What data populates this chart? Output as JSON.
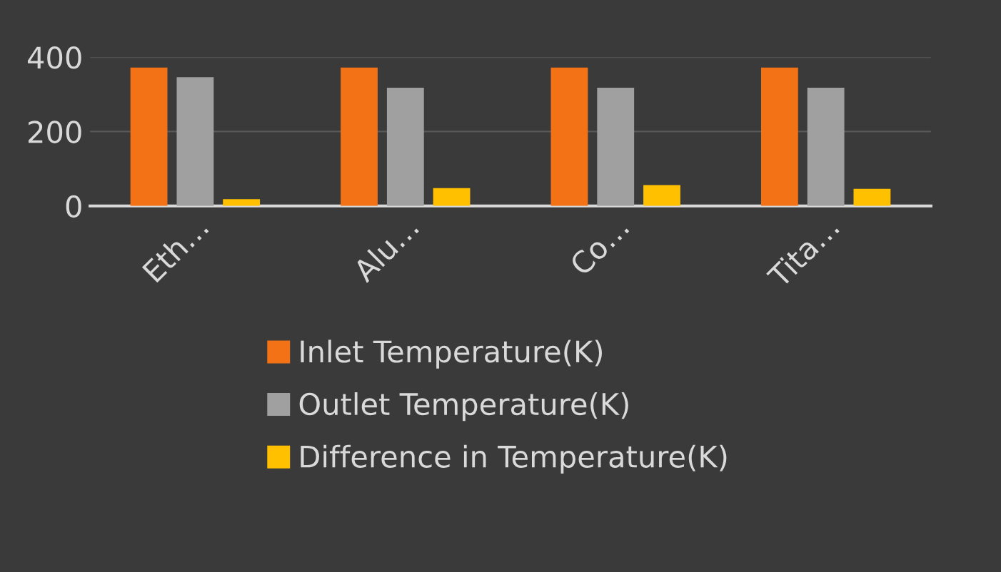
{
  "chart_data": {
    "type": "bar",
    "categories": [
      "Eth…",
      "Alu…",
      "Co…",
      "Tita…"
    ],
    "series": [
      {
        "name": "Inlet Temperature(K)",
        "color": "#f47216",
        "values": [
          372,
          372,
          372,
          372
        ]
      },
      {
        "name": "Outlet Temperature(K)",
        "color": "#a0a0a0",
        "values": [
          346,
          318,
          318,
          318
        ]
      },
      {
        "name": "Difference in Temperature(K)",
        "color": "#ffc000",
        "values": [
          18,
          48,
          56,
          46
        ]
      }
    ],
    "ylim": [
      0,
      400
    ],
    "yticks": [
      0,
      200,
      400
    ],
    "grid": "y",
    "legend": "bottom"
  }
}
